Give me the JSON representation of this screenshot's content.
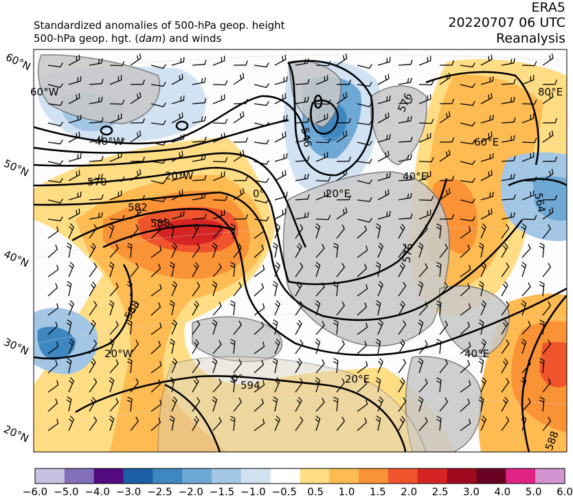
{
  "header": {
    "title_line1": "Standardized anomalies of 500-hPa geop. height",
    "title_line2_prefix": "500-hPa geop. hgt. (",
    "title_line2_unit": "dam",
    "title_line2_suffix": ") and winds",
    "dataset": "ERA5",
    "datetime": "20220707 06 UTC",
    "product": "Reanalysis"
  },
  "map": {
    "lat_labels": [
      "60°N",
      "50°N",
      "40°N",
      "30°N",
      "20°N"
    ],
    "lon_labels": [
      "60°W",
      "40°W",
      "20°W",
      "0°",
      "20°E",
      "40°E",
      "60°E",
      "80°E",
      "20°W",
      "0°",
      "20°E",
      "40°E"
    ],
    "contour_labels": [
      "570",
      "582",
      "588",
      "588",
      "594",
      "576",
      "564",
      "576",
      "588",
      "546"
    ],
    "colors": {
      "ocean": "#fcfcfc",
      "land": "#c8c8c8",
      "coast": "#6a6a6a",
      "contour": "#000000"
    }
  },
  "colorbar": {
    "tick_labels": [
      "-6.0",
      "-5.0",
      "-4.0",
      "-3.0",
      "-2.5",
      "-2.0",
      "-1.5",
      "-1.0",
      "-0.5",
      "0.5",
      "1.0",
      "1.5",
      "2.0",
      "2.5",
      "3.0",
      "4.0",
      "5.0",
      "6.0"
    ],
    "colors": [
      "#c8c2e2",
      "#8170b8",
      "#520a7e",
      "#1c5ea3",
      "#3f87c0",
      "#6ea8d5",
      "#a4c6e5",
      "#d1e2f3",
      "#ffffff",
      "#ffdd85",
      "#fdbb52",
      "#fa9236",
      "#f0542c",
      "#d62424",
      "#9e0a1c",
      "#690022",
      "#e02486",
      "#d494cf"
    ]
  }
}
